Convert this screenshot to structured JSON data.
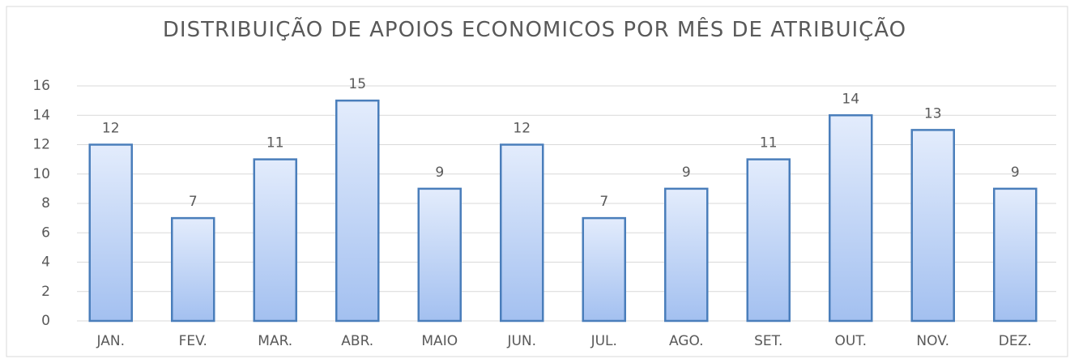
{
  "chart_data": {
    "type": "bar",
    "title": "DISTRIBUIÇÃO  DE APOIOS ECONOMICOS POR MÊS DE ATRIBUIÇÃO",
    "categories": [
      "JAN.",
      "FEV.",
      "MAR.",
      "ABR.",
      "MAIO",
      "JUN.",
      "JUL.",
      "AGO.",
      "SET.",
      "OUT.",
      "NOV.",
      "DEZ."
    ],
    "values": [
      12,
      7,
      11,
      15,
      9,
      12,
      7,
      9,
      11,
      14,
      13,
      9
    ],
    "color": "#4a7ebb",
    "ylim": [
      0,
      16
    ],
    "yticks": [
      0,
      2,
      4,
      6,
      8,
      10,
      12,
      14,
      16
    ],
    "grid": true
  }
}
